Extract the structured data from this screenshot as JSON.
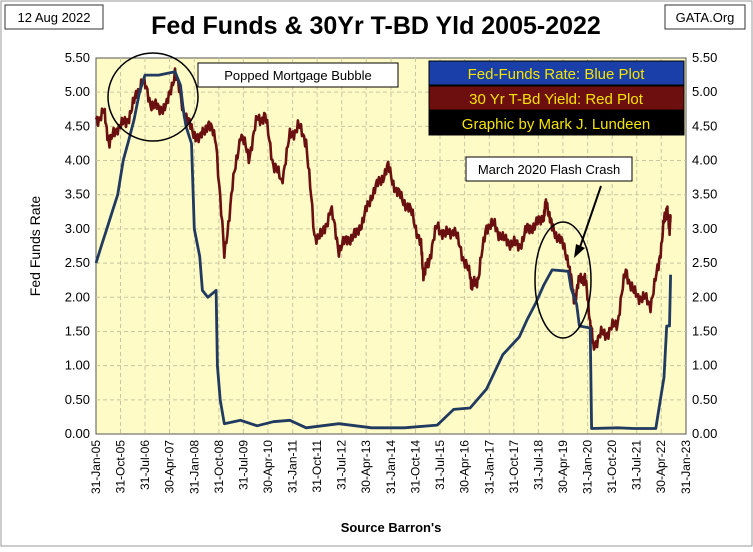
{
  "header": {
    "date": "12 Aug 2022",
    "title": "Fed Funds & 30Yr T-BD Yld 2005-2022",
    "source": "GATA.Org"
  },
  "legend": {
    "items": [
      {
        "label": "Fed-Funds Rate: Blue Plot",
        "bg": "#1a3fa8",
        "fg": "#f5e400"
      },
      {
        "label": "30 Yr T-Bd Yield: Red Plot",
        "bg": "#6e0f0f",
        "fg": "#f5e400"
      },
      {
        "label": "Graphic by Mark J. Lundeen",
        "bg": "#000000",
        "fg": "#f5e400"
      }
    ]
  },
  "annotations": {
    "bubble": "Popped Mortgage  Bubble",
    "crash": "March  2020 Flash Crash"
  },
  "colors": {
    "plot_bg": "#fffbc6",
    "blue": "#203a60",
    "red": "#6a1010",
    "grid": "#c8c8a0"
  },
  "chart_data": {
    "type": "line",
    "title": "Fed Funds & 30Yr T-BD Yld 2005-2022",
    "ylabel": "Fed  Funds  Rate",
    "xlabel": "Source  Barron's",
    "ylim": [
      0,
      5.5
    ],
    "xlim": [
      "2005-01-31",
      "2023-01-31"
    ],
    "grid": "dashed vertical and horizontal",
    "y_ticks": [
      "0.00",
      "0.50",
      "1.00",
      "1.50",
      "2.00",
      "2.50",
      "3.00",
      "3.50",
      "4.00",
      "4.50",
      "5.00",
      "5.50"
    ],
    "x_ticks": [
      "31-Jan-05",
      "31-Oct-05",
      "31-Jul-06",
      "30-Apr-07",
      "31-Jan-08",
      "31-Oct-08",
      "31-Jul-09",
      "30-Apr-10",
      "31-Jan-11",
      "31-Oct-11",
      "31-Jul-12",
      "30-Apr-13",
      "31-Jan-14",
      "31-Oct-14",
      "31-Jul-15",
      "30-Apr-16",
      "31-Jan-17",
      "31-Oct-17",
      "31-Jul-18",
      "30-Apr-19",
      "31-Jan-20",
      "31-Oct-20",
      "31-Jul-21",
      "30-Apr-22",
      "31-Jan-23"
    ],
    "series": [
      {
        "name": "Fed-Funds Rate",
        "color": "#203a60",
        "points": [
          [
            "2005-01-31",
            2.5
          ],
          [
            "2005-03-31",
            2.75
          ],
          [
            "2005-05-31",
            3.0
          ],
          [
            "2005-07-31",
            3.25
          ],
          [
            "2005-09-30",
            3.5
          ],
          [
            "2005-11-30",
            4.0
          ],
          [
            "2006-01-31",
            4.3
          ],
          [
            "2006-03-31",
            4.6
          ],
          [
            "2006-05-31",
            5.0
          ],
          [
            "2006-07-31",
            5.25
          ],
          [
            "2006-12-31",
            5.25
          ],
          [
            "2007-06-30",
            5.3
          ],
          [
            "2007-08-31",
            5.1
          ],
          [
            "2007-09-30",
            4.75
          ],
          [
            "2007-10-31",
            4.5
          ],
          [
            "2007-12-31",
            4.25
          ],
          [
            "2008-01-31",
            3.0
          ],
          [
            "2008-03-31",
            2.6
          ],
          [
            "2008-04-30",
            2.1
          ],
          [
            "2008-06-30",
            2.0
          ],
          [
            "2008-09-30",
            2.1
          ],
          [
            "2008-10-15",
            1.0
          ],
          [
            "2008-11-15",
            0.5
          ],
          [
            "2008-12-31",
            0.15
          ],
          [
            "2009-06-30",
            0.2
          ],
          [
            "2009-12-31",
            0.12
          ],
          [
            "2010-06-30",
            0.18
          ],
          [
            "2010-12-31",
            0.2
          ],
          [
            "2011-06-30",
            0.09
          ],
          [
            "2012-06-30",
            0.15
          ],
          [
            "2013-06-30",
            0.09
          ],
          [
            "2014-06-30",
            0.09
          ],
          [
            "2015-06-30",
            0.13
          ],
          [
            "2015-12-31",
            0.36
          ],
          [
            "2016-06-30",
            0.38
          ],
          [
            "2016-12-31",
            0.66
          ],
          [
            "2017-03-31",
            0.91
          ],
          [
            "2017-06-30",
            1.16
          ],
          [
            "2017-12-31",
            1.42
          ],
          [
            "2018-03-31",
            1.68
          ],
          [
            "2018-06-30",
            1.91
          ],
          [
            "2018-09-30",
            2.18
          ],
          [
            "2018-12-31",
            2.4
          ],
          [
            "2019-06-30",
            2.38
          ],
          [
            "2019-07-31",
            2.13
          ],
          [
            "2019-09-30",
            1.9
          ],
          [
            "2019-10-31",
            1.58
          ],
          [
            "2020-02-29",
            1.55
          ],
          [
            "2020-03-15",
            0.08
          ],
          [
            "2020-12-31",
            0.09
          ],
          [
            "2021-06-30",
            0.08
          ],
          [
            "2022-02-28",
            0.08
          ],
          [
            "2022-03-31",
            0.33
          ],
          [
            "2022-05-31",
            0.83
          ],
          [
            "2022-06-30",
            1.58
          ],
          [
            "2022-07-31",
            1.58
          ],
          [
            "2022-08-12",
            2.33
          ]
        ]
      },
      {
        "name": "30 Yr T-Bd Yield",
        "color": "#6a1010",
        "points": [
          [
            "2005-01-31",
            4.6
          ],
          [
            "2005-04-30",
            4.7
          ],
          [
            "2005-06-30",
            4.25
          ],
          [
            "2005-09-30",
            4.5
          ],
          [
            "2005-12-31",
            4.55
          ],
          [
            "2006-03-31",
            4.85
          ],
          [
            "2006-06-30",
            5.2
          ],
          [
            "2006-09-30",
            4.85
          ],
          [
            "2006-12-31",
            4.75
          ],
          [
            "2007-03-31",
            4.8
          ],
          [
            "2007-06-30",
            5.3
          ],
          [
            "2007-09-30",
            4.75
          ],
          [
            "2007-12-31",
            4.45
          ],
          [
            "2008-03-31",
            4.3
          ],
          [
            "2008-06-30",
            4.55
          ],
          [
            "2008-09-30",
            4.3
          ],
          [
            "2008-12-31",
            2.6
          ],
          [
            "2009-03-31",
            3.6
          ],
          [
            "2009-06-30",
            4.4
          ],
          [
            "2009-09-30",
            4.05
          ],
          [
            "2009-12-31",
            4.6
          ],
          [
            "2010-03-31",
            4.65
          ],
          [
            "2010-06-30",
            3.95
          ],
          [
            "2010-09-30",
            3.7
          ],
          [
            "2010-12-31",
            4.35
          ],
          [
            "2011-03-31",
            4.5
          ],
          [
            "2011-06-30",
            4.3
          ],
          [
            "2011-09-30",
            2.9
          ],
          [
            "2011-12-31",
            2.9
          ],
          [
            "2012-03-31",
            3.3
          ],
          [
            "2012-06-30",
            2.7
          ],
          [
            "2012-09-30",
            2.85
          ],
          [
            "2012-12-31",
            2.9
          ],
          [
            "2013-03-31",
            3.15
          ],
          [
            "2013-06-30",
            3.5
          ],
          [
            "2013-09-30",
            3.7
          ],
          [
            "2013-12-31",
            3.9
          ],
          [
            "2014-03-31",
            3.55
          ],
          [
            "2014-06-30",
            3.4
          ],
          [
            "2014-09-30",
            3.2
          ],
          [
            "2014-12-31",
            2.75
          ],
          [
            "2015-01-31",
            2.3
          ],
          [
            "2015-03-31",
            2.55
          ],
          [
            "2015-06-30",
            3.05
          ],
          [
            "2015-09-30",
            2.9
          ],
          [
            "2015-12-31",
            3.0
          ],
          [
            "2016-03-31",
            2.65
          ],
          [
            "2016-06-30",
            2.3
          ],
          [
            "2016-07-31",
            2.15
          ],
          [
            "2016-09-30",
            2.3
          ],
          [
            "2016-12-31",
            3.05
          ],
          [
            "2017-03-31",
            3.05
          ],
          [
            "2017-06-30",
            2.85
          ],
          [
            "2017-09-30",
            2.8
          ],
          [
            "2017-12-31",
            2.75
          ],
          [
            "2018-03-31",
            3.0
          ],
          [
            "2018-06-30",
            3.05
          ],
          [
            "2018-09-30",
            3.2
          ],
          [
            "2018-10-31",
            3.4
          ],
          [
            "2018-12-31",
            3.0
          ],
          [
            "2019-03-31",
            2.85
          ],
          [
            "2019-06-30",
            2.55
          ],
          [
            "2019-08-31",
            1.95
          ],
          [
            "2019-10-31",
            2.25
          ],
          [
            "2019-12-31",
            2.3
          ],
          [
            "2020-02-29",
            1.65
          ],
          [
            "2020-03-31",
            1.3
          ],
          [
            "2020-06-30",
            1.45
          ],
          [
            "2020-09-30",
            1.5
          ],
          [
            "2020-12-31",
            1.65
          ],
          [
            "2021-03-31",
            2.4
          ],
          [
            "2021-06-30",
            2.05
          ],
          [
            "2021-09-30",
            2.0
          ],
          [
            "2021-12-31",
            1.9
          ],
          [
            "2022-03-31",
            2.45
          ],
          [
            "2022-05-31",
            3.1
          ],
          [
            "2022-06-30",
            3.3
          ],
          [
            "2022-07-31",
            3.0
          ],
          [
            "2022-08-12",
            3.15
          ]
        ]
      }
    ]
  }
}
